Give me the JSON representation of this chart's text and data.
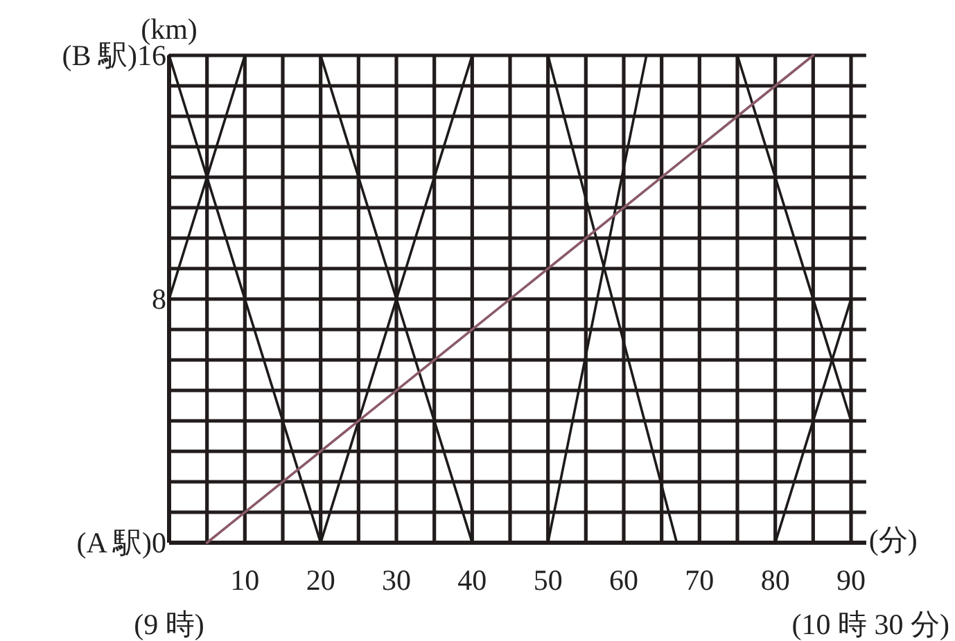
{
  "chart_data": {
    "type": "line",
    "xlabel": "(分)",
    "ylabel": "(km)",
    "xlim": [
      0,
      92
    ],
    "ylim": [
      0,
      16
    ],
    "xticks": [
      {
        "value": 0,
        "label": null
      },
      {
        "value": 5,
        "label": null
      },
      10,
      {
        "value": 15,
        "label": null
      },
      20,
      {
        "value": 25,
        "label": null
      },
      30,
      {
        "value": 35,
        "label": null
      },
      40,
      {
        "value": 45,
        "label": null
      },
      50,
      {
        "value": 55,
        "label": null
      },
      60,
      {
        "value": 65,
        "label": null
      },
      70,
      {
        "value": 75,
        "label": null
      },
      80,
      {
        "value": 85,
        "label": null
      },
      90
    ],
    "yticks": [
      {
        "value": 0,
        "label": "(A 駅)0"
      },
      {
        "value": 1,
        "label": null
      },
      {
        "value": 2,
        "label": null
      },
      {
        "value": 3,
        "label": null
      },
      {
        "value": 4,
        "label": null
      },
      {
        "value": 5,
        "label": null
      },
      {
        "value": 6,
        "label": null
      },
      {
        "value": 7,
        "label": null
      },
      8,
      {
        "value": 9,
        "label": null
      },
      {
        "value": 10,
        "label": null
      },
      {
        "value": 11,
        "label": null
      },
      {
        "value": 12,
        "label": null
      },
      {
        "value": 13,
        "label": null
      },
      {
        "value": 14,
        "label": null
      },
      {
        "value": 15,
        "label": null
      },
      {
        "value": 16,
        "label": "(B 駅)16"
      }
    ],
    "grid": true,
    "marker": "none",
    "line_style": "solid",
    "annotations": [
      "(9 時)",
      "(10 時 30 分)"
    ],
    "series": [
      {
        "color": "#1e1a1a",
        "x": [
          0,
          10
        ],
        "values": [
          8,
          16
        ]
      },
      {
        "color": "#1e1a1a",
        "x": [
          0,
          20,
          40
        ],
        "values": [
          16,
          0,
          16
        ]
      },
      {
        "color": "#1e1a1a",
        "x": [
          20,
          40
        ],
        "values": [
          16,
          0
        ]
      },
      {
        "color": "#1e1a1a",
        "x": [
          50,
          67
        ],
        "values": [
          16,
          0
        ]
      },
      {
        "color": "#1e1a1a",
        "x": [
          50,
          63
        ],
        "values": [
          0,
          16
        ]
      },
      {
        "color": "#1e1a1a",
        "x": [
          75,
          90
        ],
        "values": [
          16,
          4
        ]
      },
      {
        "color": "#1e1a1a",
        "x": [
          80,
          90
        ],
        "values": [
          0,
          8
        ]
      },
      {
        "color": "#8a5a68",
        "x": [
          5,
          85
        ],
        "values": [
          0,
          16
        ]
      }
    ]
  }
}
